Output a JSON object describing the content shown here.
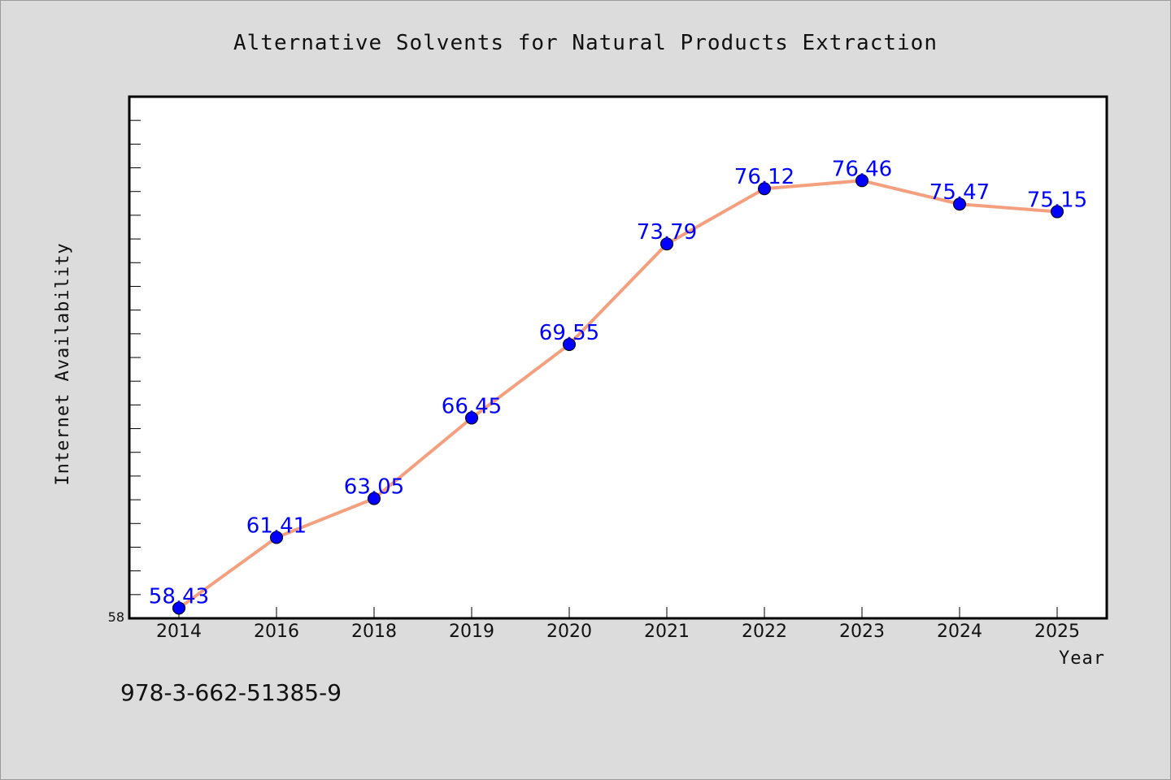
{
  "chart_data": {
    "type": "line",
    "title": "Alternative Solvents for Natural Products Extraction",
    "xlabel": "Year",
    "ylabel": "Internet Availability",
    "categories": [
      "2014",
      "2016",
      "2018",
      "2019",
      "2020",
      "2021",
      "2022",
      "2023",
      "2024",
      "2025"
    ],
    "series": [
      {
        "values": [
          58.43,
          61.41,
          63.05,
          66.45,
          69.55,
          73.79,
          76.12,
          76.46,
          75.47,
          75.15
        ],
        "labels": [
          "58.43",
          "61.41",
          "63.05",
          "66.45",
          "69.55",
          "73.79",
          "76.12",
          "76.46",
          "75.47",
          "75.15"
        ],
        "line_color": "#f4a07f",
        "marker_color": "#0000ff"
      }
    ],
    "ylim": [
      58,
      80
    ],
    "y_ticks_labeled": [
      "58"
    ],
    "grid": false,
    "legend": "none"
  },
  "footnote": "978-3-662-51385-9",
  "colors": {
    "background": "#dcdcdc",
    "plot_background": "#ffffff",
    "line": "#f4a07f",
    "marker": "#0000ff",
    "data_label": "#0000ff"
  }
}
